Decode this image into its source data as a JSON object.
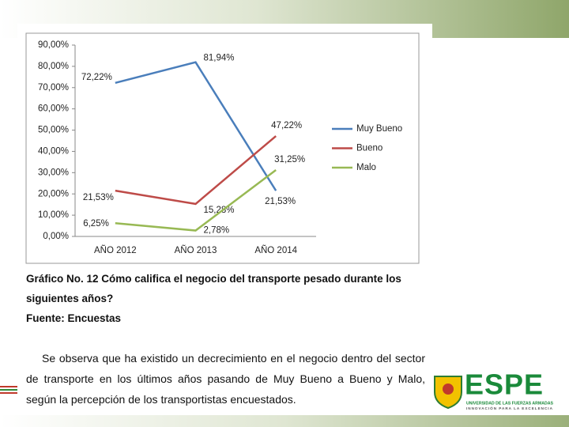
{
  "chart_data": {
    "type": "line",
    "categories": [
      "AÑO 2012",
      "AÑO 2013",
      "AÑO 2014"
    ],
    "series": [
      {
        "name": "Muy Bueno",
        "color": "#4a7ebb",
        "values": [
          72.22,
          81.94,
          21.53
        ],
        "value_labels": [
          "72,22%",
          "81,94%",
          "21,53%"
        ]
      },
      {
        "name": "Bueno",
        "color": "#be4b48",
        "values": [
          21.53,
          15.28,
          47.22
        ],
        "value_labels": [
          "21,53%",
          "15,28%",
          "47,22%"
        ]
      },
      {
        "name": "Malo",
        "color": "#98b954",
        "values": [
          6.25,
          2.78,
          31.25
        ],
        "value_labels": [
          "6,25%",
          "2,78%",
          "31,25%"
        ]
      }
    ],
    "ylim": [
      0,
      90
    ],
    "yticks": [
      {
        "value": 0,
        "label": "0,00%"
      },
      {
        "value": 10,
        "label": "10,00%"
      },
      {
        "value": 20,
        "label": "20,00%"
      },
      {
        "value": 30,
        "label": "30,00%"
      },
      {
        "value": 40,
        "label": "40,00%"
      },
      {
        "value": 50,
        "label": "50,00%"
      },
      {
        "value": 60,
        "label": "60,00%"
      },
      {
        "value": 70,
        "label": "70,00%"
      },
      {
        "value": 80,
        "label": "80,00%"
      },
      {
        "value": 90,
        "label": "90,00%"
      }
    ],
    "grid": false,
    "legend": "right"
  },
  "caption": {
    "title": "Gráfico No. 12 Cómo califica el negocio del transporte pesado durante los siguientes años?",
    "source": "Fuente: Encuestas"
  },
  "body": "Se observa que ha existido un decrecimiento en el negocio dentro del sector de transporte en los últimos años pasando de Muy Bueno a Bueno y Malo, según la percepción de los transportistas encuestados.",
  "logo": {
    "name": "ESPE",
    "line1": "UNIVERSIDAD DE LAS FUERZAS ARMADAS",
    "line2": "INNOVACIÓN PARA LA EXCELENCIA"
  }
}
